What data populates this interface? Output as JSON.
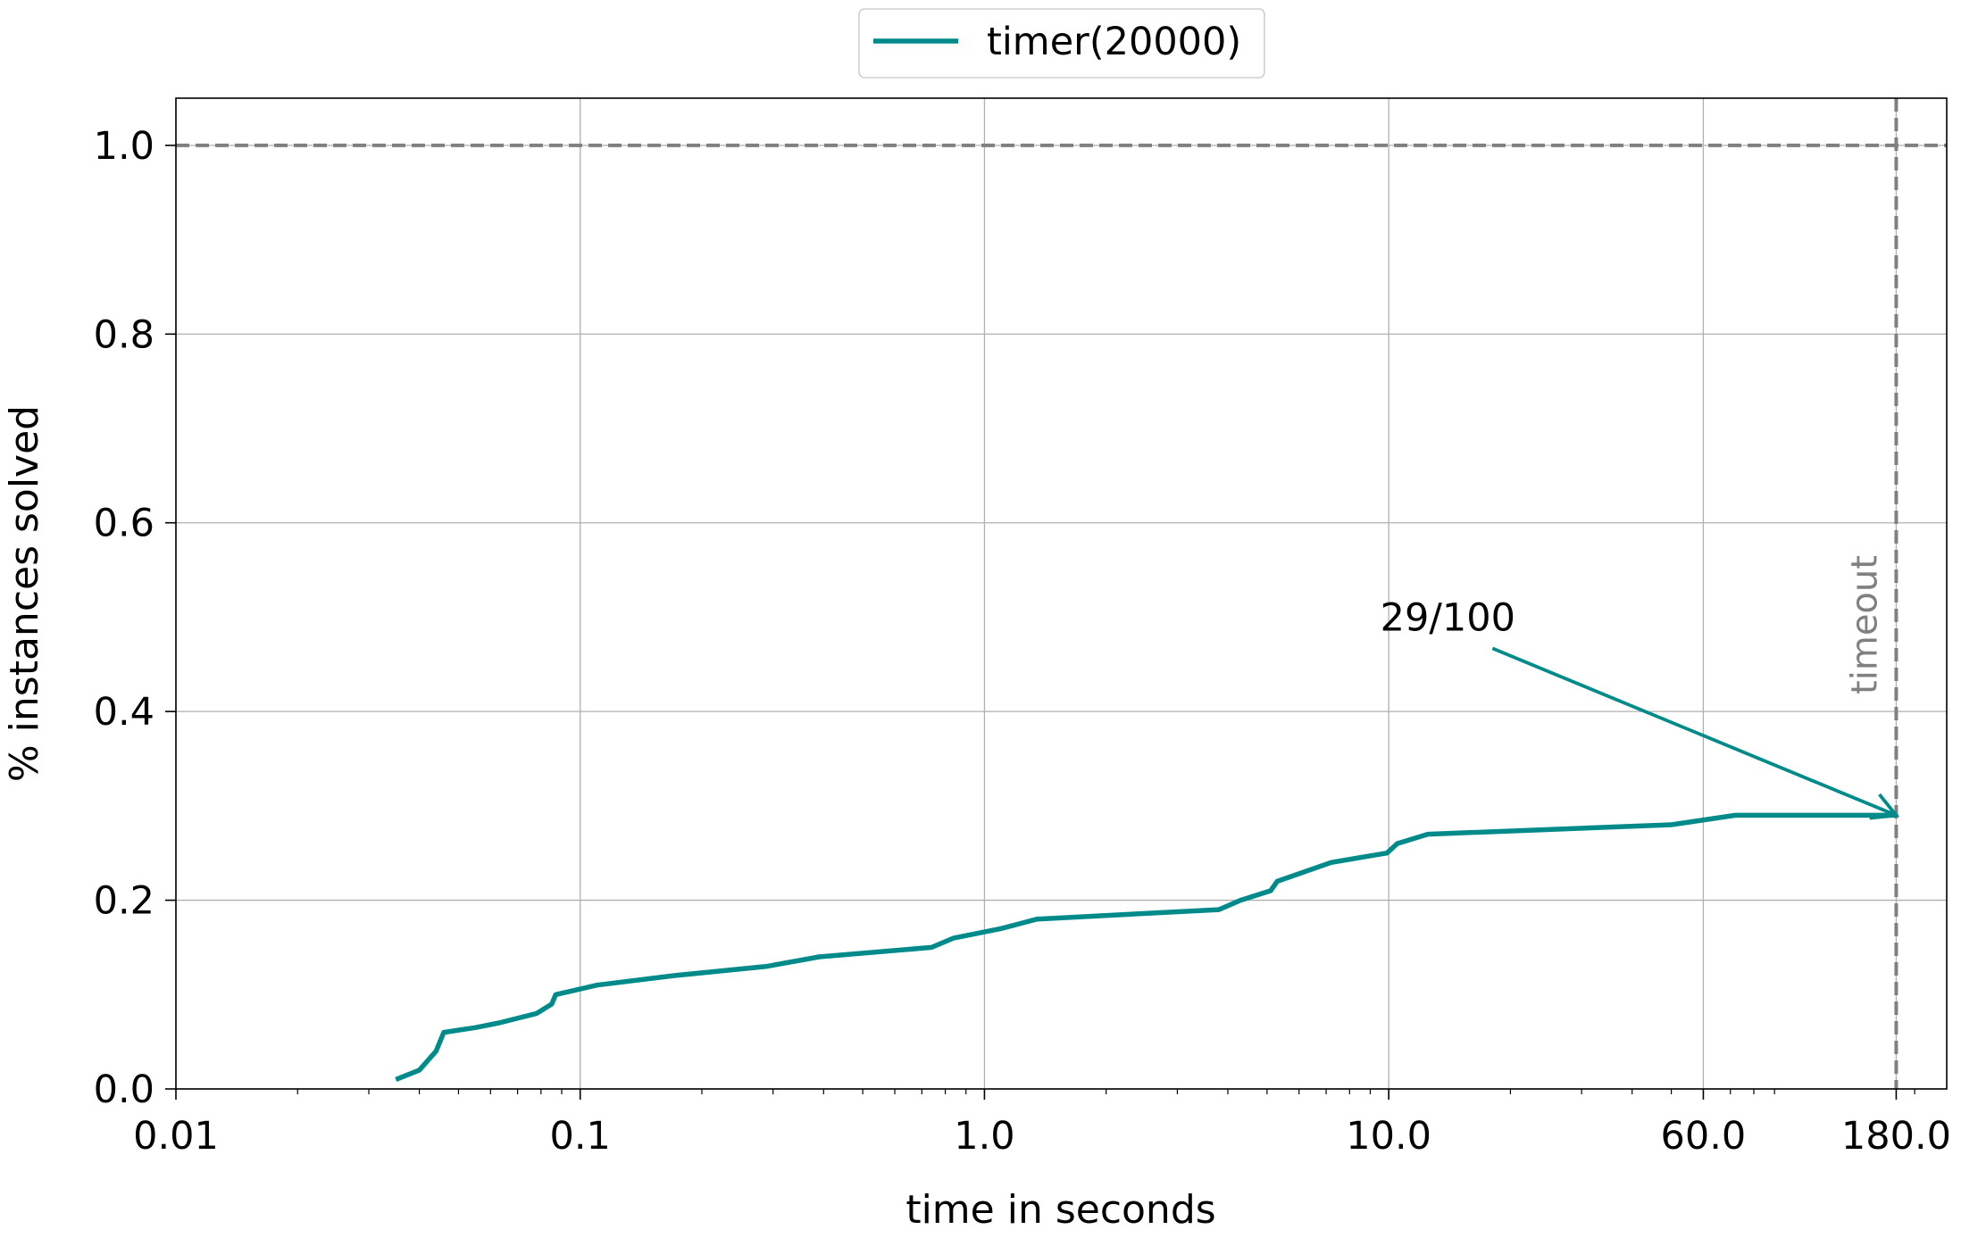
{
  "chart_data": {
    "type": "line",
    "xlabel": "time in seconds",
    "ylabel": "% instances solved",
    "x_scale": "log",
    "xlim": [
      0.01,
      240
    ],
    "ylim": [
      0.0,
      1.05
    ],
    "x_ticks": [
      {
        "value": 0.01,
        "label": "0.01"
      },
      {
        "value": 0.1,
        "label": "0.1"
      },
      {
        "value": 1.0,
        "label": "1.0"
      },
      {
        "value": 10.0,
        "label": "10.0"
      },
      {
        "value": 60.0,
        "label": "60.0"
      },
      {
        "value": 180.0,
        "label": "180.0"
      }
    ],
    "y_ticks": [
      {
        "value": 0.0,
        "label": "0.0"
      },
      {
        "value": 0.2,
        "label": "0.2"
      },
      {
        "value": 0.4,
        "label": "0.4"
      },
      {
        "value": 0.6,
        "label": "0.6"
      },
      {
        "value": 0.8,
        "label": "0.8"
      },
      {
        "value": 1.0,
        "label": "1.0"
      }
    ],
    "grid": true,
    "legend_position": "top-center",
    "series": [
      {
        "name": "timer(20000)",
        "color": "#008b8b",
        "x": [
          0.035,
          0.04,
          0.044,
          0.046,
          0.055,
          0.063,
          0.078,
          0.085,
          0.087,
          0.11,
          0.17,
          0.29,
          0.39,
          0.74,
          0.84,
          1.1,
          1.35,
          3.8,
          4.3,
          5.1,
          5.3,
          7.2,
          9.9,
          10.5,
          12.5,
          50,
          72,
          180
        ],
        "y": [
          0.01,
          0.02,
          0.04,
          0.06,
          0.065,
          0.07,
          0.08,
          0.09,
          0.1,
          0.11,
          0.12,
          0.13,
          0.14,
          0.15,
          0.16,
          0.17,
          0.18,
          0.19,
          0.2,
          0.21,
          0.22,
          0.24,
          0.25,
          0.26,
          0.27,
          0.28,
          0.29,
          0.29
        ]
      }
    ],
    "reference_lines": [
      {
        "orientation": "horizontal",
        "value": 1.0,
        "style": "dashed",
        "color": "#808080"
      },
      {
        "orientation": "vertical",
        "value": 180.0,
        "style": "dashed",
        "color": "#808080",
        "label": "timeout"
      }
    ],
    "annotations": [
      {
        "text": "29/100",
        "text_at": {
          "x": 14,
          "y": 0.5
        },
        "arrow_to": {
          "x": 180,
          "y": 0.29
        },
        "color": "#008b8b"
      }
    ]
  }
}
